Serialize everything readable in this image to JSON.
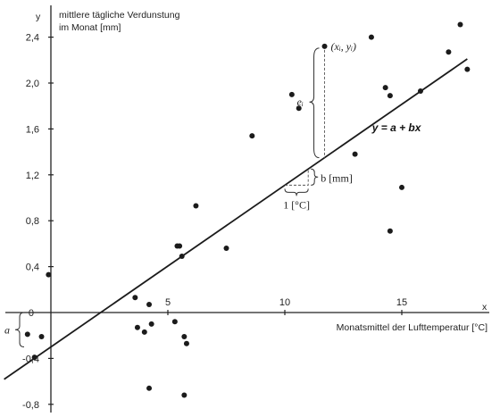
{
  "chart_data": {
    "type": "scatter",
    "ylabel_lines": [
      "mittlere tägliche Verdunstung",
      "im Monat [mm]"
    ],
    "xlabel": "Monatsmittel der Lufttemperatur [°C]",
    "y_axis_letter": "y",
    "x_axis_letter": "x",
    "xlim": [
      -2,
      18.5
    ],
    "ylim": [
      -0.88,
      2.62
    ],
    "x_ticks": [
      5,
      10,
      15
    ],
    "x_tick_labels": [
      "5",
      "10",
      "15"
    ],
    "y_ticks": [
      -0.8,
      -0.4,
      0.4,
      0.8,
      1.2,
      1.6,
      2.0,
      2.4
    ],
    "y_tick_labels": [
      "-0,8",
      "-0,4",
      "0,4",
      "0,8",
      "1,2",
      "1,6",
      "2,0",
      "2,4"
    ],
    "origin_label": "0",
    "grid": false,
    "points": [
      {
        "x": -1.0,
        "y": -0.19
      },
      {
        "x": -0.7,
        "y": -0.39
      },
      {
        "x": -0.4,
        "y": -0.21
      },
      {
        "x": -0.1,
        "y": 0.33
      },
      {
        "x": 3.6,
        "y": 0.13
      },
      {
        "x": 3.7,
        "y": -0.13
      },
      {
        "x": 4.0,
        "y": -0.17
      },
      {
        "x": 4.2,
        "y": 0.07
      },
      {
        "x": 4.3,
        "y": -0.1
      },
      {
        "x": 4.2,
        "y": -0.66
      },
      {
        "x": 5.3,
        "y": -0.08
      },
      {
        "x": 5.4,
        "y": 0.58
      },
      {
        "x": 5.5,
        "y": 0.58
      },
      {
        "x": 5.6,
        "y": 0.49
      },
      {
        "x": 5.7,
        "y": -0.21
      },
      {
        "x": 5.8,
        "y": -0.27
      },
      {
        "x": 5.7,
        "y": -0.72
      },
      {
        "x": 6.2,
        "y": 0.93
      },
      {
        "x": 7.5,
        "y": 0.56
      },
      {
        "x": 8.6,
        "y": 1.54
      },
      {
        "x": 10.3,
        "y": 1.9
      },
      {
        "x": 10.6,
        "y": 1.78
      },
      {
        "x": 11.7,
        "y": 2.32
      },
      {
        "x": 13.0,
        "y": 1.38
      },
      {
        "x": 13.7,
        "y": 2.4
      },
      {
        "x": 14.3,
        "y": 1.96
      },
      {
        "x": 14.5,
        "y": 1.89
      },
      {
        "x": 14.5,
        "y": 0.71
      },
      {
        "x": 15.0,
        "y": 1.09
      },
      {
        "x": 15.8,
        "y": 1.93
      },
      {
        "x": 17.0,
        "y": 2.27
      },
      {
        "x": 17.5,
        "y": 2.51
      },
      {
        "x": 17.8,
        "y": 2.12
      }
    ],
    "regression": {
      "a": -0.3,
      "b": 0.141,
      "x_from": -2,
      "x_to": 17.8
    },
    "annotations": {
      "point_label": "(xᵢ, yᵢ)",
      "residual_label": "eᵢ",
      "equation": "y = a + bx",
      "slope_label": "b [mm]",
      "unit_label": "1 [°C]",
      "intercept_label": "a"
    }
  }
}
